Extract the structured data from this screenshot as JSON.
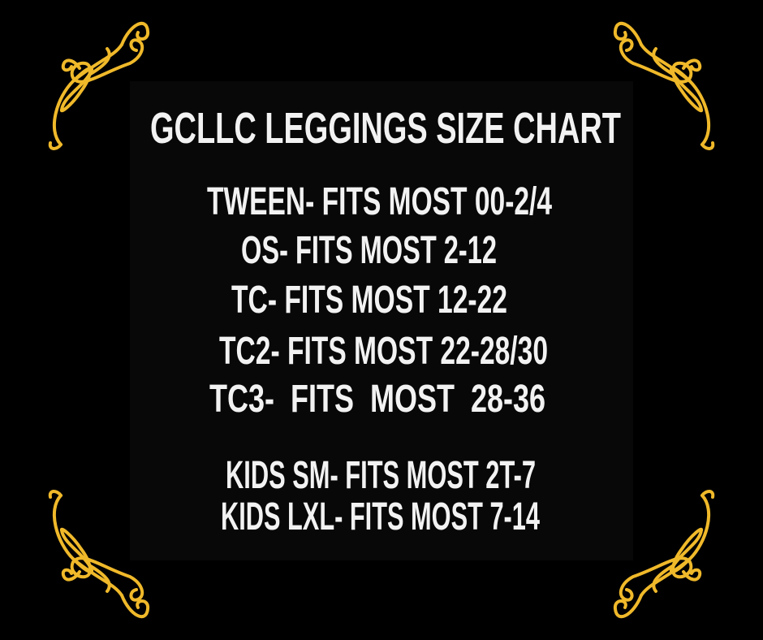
{
  "title": "GCLLC LEGGINGS SIZE CHART",
  "sizes": [
    "TWEEN- FITS MOST 00-2/4",
    "OS- FITS MOST 2-12",
    "TC- FITS MOST 12-22",
    "TC2- FITS MOST 22-28/30",
    "TC3-  FITS  MOST  28-36"
  ],
  "kids": [
    "KIDS SM- FITS MOST 2T-7",
    "KIDS LXL- FITS MOST 7-14"
  ],
  "colors": {
    "background": "#000000",
    "ornament": "#f0b92a",
    "text": "#f2f2f2"
  },
  "decor": {
    "corner_ornament": "gold-flourish-icon"
  }
}
